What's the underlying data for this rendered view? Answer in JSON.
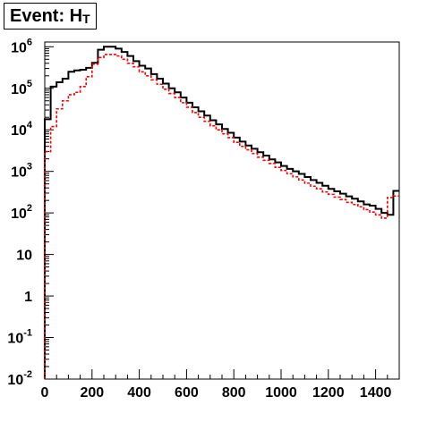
{
  "chart_data": {
    "type": "histogram",
    "title": "Event: H",
    "title_subscript": "T",
    "xlim": [
      0,
      1500
    ],
    "ylim": [
      0.01,
      1300000
    ],
    "y_scale": "log",
    "grid": false,
    "x_ticks": [
      {
        "value": 0,
        "label": "0"
      },
      {
        "value": 200,
        "label": "200"
      },
      {
        "value": 400,
        "label": "400"
      },
      {
        "value": 600,
        "label": "600"
      },
      {
        "value": 800,
        "label": "800"
      },
      {
        "value": 1000,
        "label": "1000"
      },
      {
        "value": 1200,
        "label": "1200"
      },
      {
        "value": 1400,
        "label": "1400"
      }
    ],
    "y_ticks": [
      {
        "value": 0.01,
        "base": "10",
        "exp": "-2"
      },
      {
        "value": 0.1,
        "base": "10",
        "exp": "-1"
      },
      {
        "value": 1,
        "base": "1",
        "exp": ""
      },
      {
        "value": 10,
        "base": "10",
        "exp": ""
      },
      {
        "value": 100,
        "base": "10",
        "exp": "2"
      },
      {
        "value": 1000,
        "base": "10",
        "exp": "3"
      },
      {
        "value": 10000,
        "base": "10",
        "exp": "4"
      },
      {
        "value": 100000,
        "base": "10",
        "exp": "5"
      },
      {
        "value": 1000000,
        "base": "10",
        "exp": "6"
      }
    ],
    "bin_edges": [
      0,
      25,
      50,
      75,
      100,
      125,
      150,
      175,
      200,
      225,
      250,
      275,
      300,
      325,
      350,
      375,
      400,
      425,
      450,
      475,
      500,
      525,
      550,
      575,
      600,
      625,
      650,
      675,
      700,
      725,
      750,
      775,
      800,
      825,
      850,
      875,
      900,
      925,
      950,
      975,
      1000,
      1025,
      1050,
      1075,
      1100,
      1125,
      1150,
      1175,
      1200,
      1225,
      1250,
      1275,
      1300,
      1325,
      1350,
      1375,
      1400,
      1425,
      1450,
      1475,
      1500
    ],
    "series": [
      {
        "color": "#000000",
        "line_style": "solid",
        "values": [
          18000,
          110000,
          140000,
          170000,
          250000,
          270000,
          280000,
          310000,
          410000,
          850000,
          1000000,
          1000000,
          900000,
          750000,
          600000,
          450000,
          350000,
          300000,
          220000,
          170000,
          130000,
          100000,
          80000,
          60000,
          45000,
          35000,
          28000,
          22000,
          17000,
          13500,
          10500,
          8500,
          6500,
          5200,
          4200,
          3500,
          2900,
          2400,
          1950,
          1650,
          1350,
          1150,
          1000,
          870,
          730,
          620,
          530,
          450,
          380,
          330,
          290,
          250,
          220,
          190,
          160,
          150,
          125,
          100,
          90,
          340
        ]
      },
      {
        "color": "#ff0000",
        "line_style": "dashed",
        "values": [
          3000,
          12000,
          32000,
          50000,
          70000,
          80000,
          110000,
          190000,
          380000,
          550000,
          650000,
          650000,
          600000,
          500000,
          400000,
          330000,
          250000,
          200000,
          160000,
          125000,
          95000,
          75000,
          60000,
          45000,
          35000,
          26000,
          20000,
          16000,
          12500,
          10000,
          8000,
          6500,
          5000,
          4000,
          3300,
          2700,
          2200,
          1850,
          1550,
          1250,
          1050,
          880,
          740,
          620,
          520,
          440,
          380,
          320,
          280,
          240,
          210,
          180,
          160,
          140,
          120,
          105,
          90,
          75,
          235,
          255
        ]
      }
    ]
  }
}
